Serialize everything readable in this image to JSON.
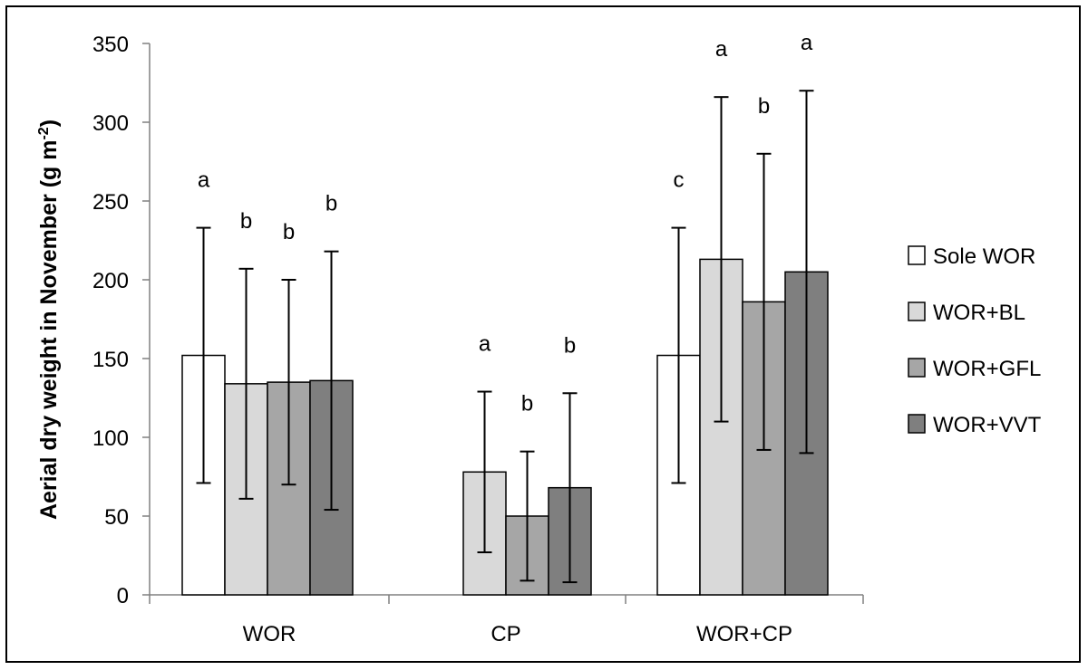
{
  "chart_data": {
    "type": "bar",
    "title": "",
    "xlabel": "",
    "ylabel": "Aerial dry weight in November (g m",
    "ylabel_sup": "-2",
    "ylabel_close": ")",
    "ylim": [
      0,
      350
    ],
    "yticks": [
      "0",
      "50",
      "100",
      "150",
      "200",
      "250",
      "300",
      "350"
    ],
    "grid": false,
    "legend_position": "right",
    "categories": [
      "WOR",
      "CP",
      "WOR+CP"
    ],
    "series": [
      {
        "name": "Sole WOR",
        "color": "#ffffff",
        "values": [
          152,
          null,
          152
        ],
        "errors": [
          81,
          null,
          81
        ],
        "letters": [
          "a",
          "",
          "c"
        ]
      },
      {
        "name": "WOR+BL",
        "color": "#d9d9d9",
        "values": [
          134,
          78,
          213
        ],
        "errors": [
          73,
          51,
          103
        ],
        "letters": [
          "b",
          "a",
          "a"
        ]
      },
      {
        "name": "WOR+GFL",
        "color": "#a6a6a6",
        "values": [
          135,
          50,
          186
        ],
        "errors": [
          65,
          41,
          94
        ],
        "letters": [
          "b",
          "b",
          "b"
        ]
      },
      {
        "name": "WOR+VVT",
        "color": "#7f7f7f",
        "values": [
          136,
          68,
          205
        ],
        "errors": [
          82,
          60,
          115
        ],
        "letters": [
          "b",
          "b",
          "a"
        ]
      }
    ]
  }
}
